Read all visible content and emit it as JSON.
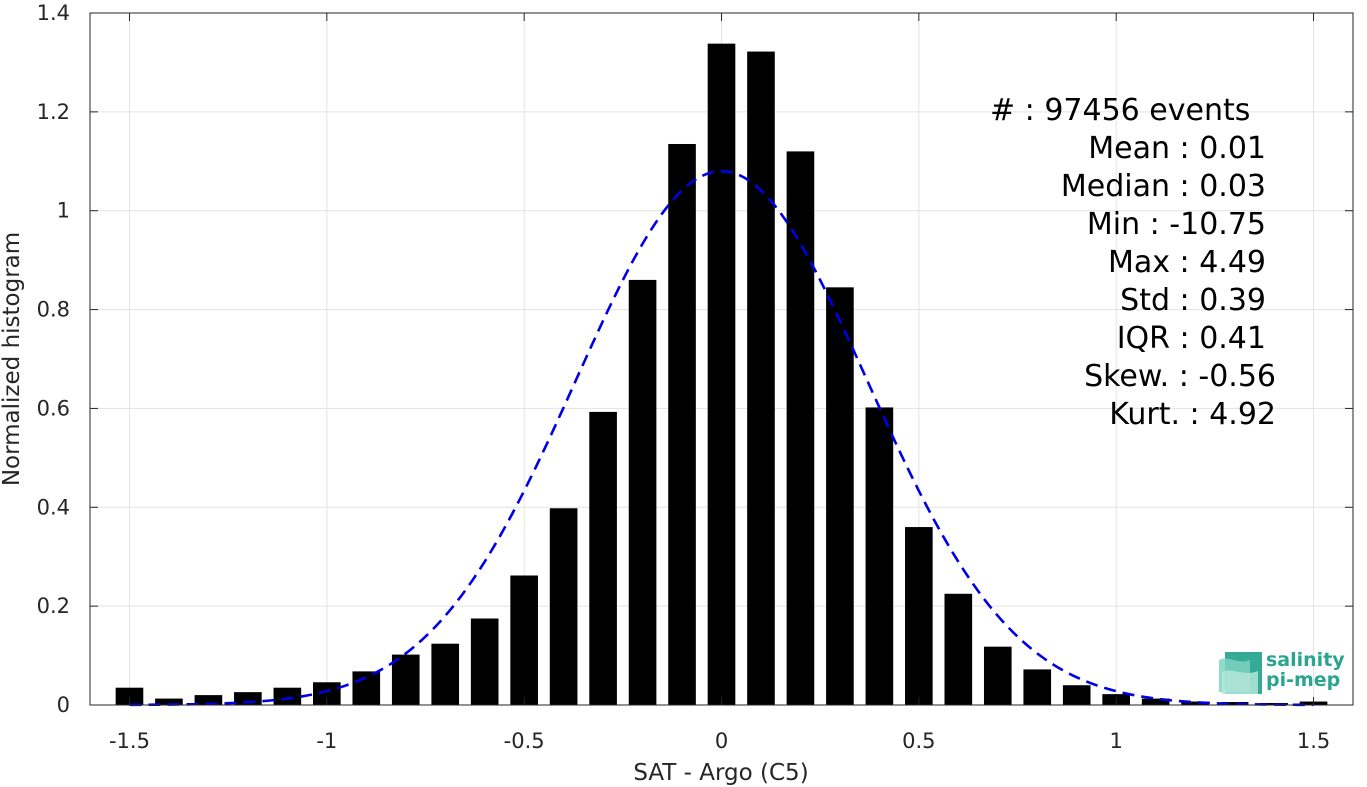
{
  "chart_data": {
    "type": "bar",
    "xlabel": "SAT - Argo (C5)",
    "ylabel": "Normalized histogram",
    "xlim": [
      -1.6,
      1.6
    ],
    "ylim": [
      0,
      1.4
    ],
    "xticks": [
      -1.5,
      -1,
      -0.5,
      0,
      0.5,
      1,
      1.5
    ],
    "xtick_labels": [
      "-1.5",
      "-1",
      "-0.5",
      "0",
      "0.5",
      "1",
      "1.5"
    ],
    "yticks": [
      0,
      0.2,
      0.4,
      0.6,
      0.8,
      1,
      1.2,
      1.4
    ],
    "ytick_labels": [
      "0",
      "0.2",
      "0.4",
      "0.6",
      "0.8",
      "1",
      "1.2",
      "1.4"
    ],
    "grid": true,
    "bar_color": "#000000",
    "fit_color": "#0000e6",
    "bar_width": 0.07,
    "bin_centers": [
      -1.5,
      -1.4,
      -1.3,
      -1.2,
      -1.1,
      -1.0,
      -0.9,
      -0.8,
      -0.7,
      -0.6,
      -0.5,
      -0.4,
      -0.3,
      -0.2,
      -0.1,
      0.0,
      0.1,
      0.2,
      0.3,
      0.4,
      0.5,
      0.6,
      0.7,
      0.8,
      0.9,
      1.0,
      1.1,
      1.2,
      1.3,
      1.4,
      1.5
    ],
    "values": [
      0.035,
      0.013,
      0.02,
      0.026,
      0.035,
      0.046,
      0.068,
      0.102,
      0.124,
      0.175,
      0.262,
      0.398,
      0.593,
      0.86,
      1.135,
      1.338,
      1.322,
      1.12,
      0.845,
      0.602,
      0.36,
      0.225,
      0.118,
      0.072,
      0.04,
      0.022,
      0.013,
      0.007,
      0.006,
      0.004,
      0.007
    ],
    "gaussian_fit": {
      "style": "dashed",
      "mean": 0.0,
      "std": 0.37,
      "peak": 1.08
    },
    "stats_lines": [
      "#  : 97456 events",
      "Mean : 0.01",
      "Median : 0.03",
      "Min : -10.75",
      "Max : 4.49",
      "Std : 0.39",
      "IQR : 0.41",
      "Skew. : -0.56",
      "Kurt. : 4.92"
    ]
  },
  "logo": {
    "line1": "salinity",
    "line2": "pi-mep",
    "icon": "salinity-wave-icon",
    "color": "#2aa58f"
  }
}
